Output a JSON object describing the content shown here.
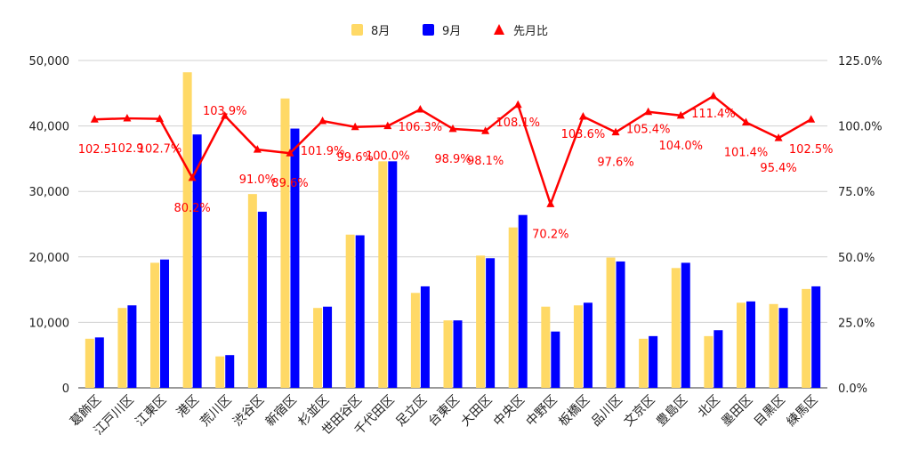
{
  "chart_data": {
    "type": "bar",
    "categories": [
      "葛飾区",
      "江戸川区",
      "江東区",
      "港区",
      "荒川区",
      "渋谷区",
      "新宿区",
      "杉並区",
      "世田谷区",
      "千代田区",
      "足立区",
      "台東区",
      "大田区",
      "中央区",
      "中野区",
      "板橋区",
      "品川区",
      "文京区",
      "豊島区",
      "北区",
      "墨田区",
      "目黒区",
      "練馬区"
    ],
    "series": [
      {
        "name": "8月",
        "color": "#FFD966",
        "values": [
          7500,
          12200,
          19100,
          48200,
          4800,
          29600,
          44200,
          12200,
          23400,
          34600,
          14500,
          10300,
          20200,
          24500,
          12400,
          12600,
          19900,
          7500,
          18300,
          7900,
          13000,
          12800,
          15100
        ]
      },
      {
        "name": "9月",
        "color": "#0000FF",
        "values": [
          7700,
          12600,
          19600,
          38700,
          5000,
          26900,
          39600,
          12400,
          23300,
          34600,
          15500,
          10300,
          19800,
          26400,
          8600,
          13000,
          19300,
          7900,
          19100,
          8800,
          13200,
          12200,
          15500
        ]
      },
      {
        "name": "先月比",
        "color": "#FF0000",
        "type": "line",
        "axis": "right",
        "values": [
          102.5,
          102.9,
          102.7,
          80.2,
          103.9,
          91.0,
          89.6,
          101.9,
          99.6,
          100.0,
          106.3,
          98.9,
          98.1,
          108.1,
          70.2,
          103.6,
          97.6,
          105.4,
          104.0,
          111.4,
          101.4,
          95.4,
          102.5
        ],
        "labels": [
          "102.5",
          "102.9",
          "102.7%",
          "80.2%",
          "103.9%",
          "91.0%",
          "89.6%",
          "101.9%",
          "99.6%",
          "100.0%",
          "106.3%",
          "98.9%",
          "98.1%",
          "108.1%",
          "70.2%",
          "103.6%",
          "97.6%",
          "105.4%",
          "104.0%",
          "111.4%",
          "101.4%",
          "95.4%",
          "102.5%"
        ]
      }
    ],
    "y_left": {
      "min": 0,
      "max": 50000,
      "ticks": [
        "0",
        "10,000",
        "20,000",
        "30,000",
        "40,000",
        "50,000"
      ]
    },
    "y_right": {
      "min": 0,
      "max": 125,
      "ticks": [
        "0.0%",
        "25.0%",
        "50.0%",
        "75.0%",
        "100.0%",
        "125.0%"
      ]
    },
    "grid": true,
    "legend_position": "top-center"
  }
}
